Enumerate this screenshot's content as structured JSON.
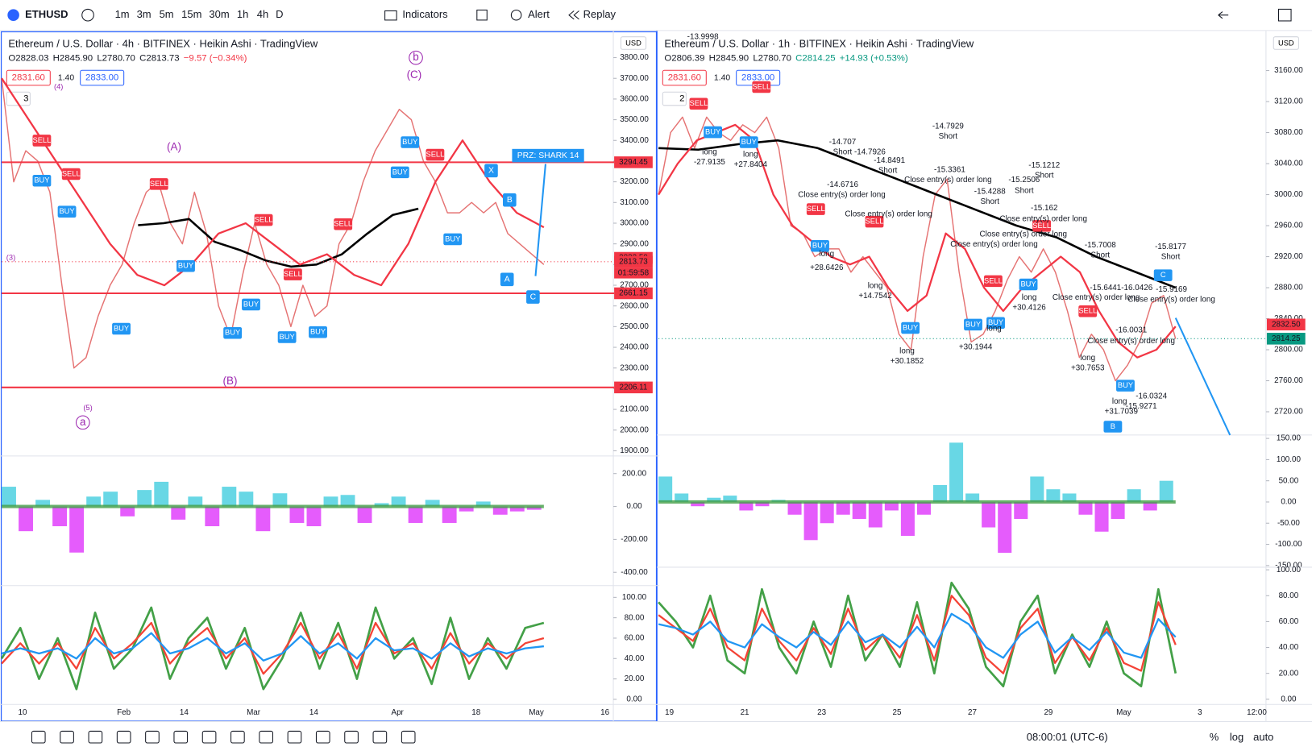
{
  "toolbar": {
    "symbol": "ETHUSD",
    "intervals": [
      "1m",
      "3m",
      "5m",
      "15m",
      "30m",
      "1h",
      "4h",
      "D"
    ],
    "indicators": "Indicators",
    "alert": "Alert",
    "replay": "Replay"
  },
  "charts": [
    {
      "title": "Ethereum / U.S. Dollar · 4h · BITFINEX · Heikin Ashi · TradingView",
      "ohlc": [
        "O2828.03",
        "H2845.90",
        "L2780.70",
        "C2813.73"
      ],
      "change": "−9.57 (−0.34%)",
      "badges": [
        "2831.60",
        "1.40",
        "2833.00"
      ],
      "indicator_count": "3",
      "currency": "USD",
      "price": {
        "ylim": [
          1875,
          3925
        ],
        "yticks": [
          {
            "value": 1900,
            "label": "1900.00"
          },
          {
            "value": 2000,
            "label": "2000.00"
          },
          {
            "value": 2100,
            "label": "2100.00"
          },
          {
            "value": 2200,
            "label": "2200.00"
          },
          {
            "value": 2300,
            "label": "2300.00"
          },
          {
            "value": 2400,
            "label": "2400.00"
          },
          {
            "value": 2500,
            "label": "2500.00"
          },
          {
            "value": 2600,
            "label": "2600.00"
          },
          {
            "value": 2700,
            "label": "2700.00"
          },
          {
            "value": 2800,
            "label": "2800.00"
          },
          {
            "value": 2900,
            "label": "2900.00"
          },
          {
            "value": 3000,
            "label": "3000.00"
          },
          {
            "value": 3100,
            "label": "3100.00"
          },
          {
            "value": 3200,
            "label": "3200.00"
          },
          {
            "value": 3300,
            "label": "3300.00"
          },
          {
            "value": 3400,
            "label": "3400.00"
          },
          {
            "value": 3500,
            "label": "3500.00"
          },
          {
            "value": 3600,
            "label": "3600.00"
          },
          {
            "value": 3700,
            "label": "3700.00"
          },
          {
            "value": 3800,
            "label": "3800.00"
          }
        ],
        "color": "#e57373",
        "values": [
          3700,
          3200,
          3350,
          3300,
          3150,
          2700,
          2300,
          2350,
          2550,
          2700,
          2800,
          3000,
          3150,
          3200,
          3000,
          2900,
          3150,
          2950,
          2600,
          2450,
          2750,
          3000,
          2800,
          2700,
          2500,
          2700,
          2550,
          2600,
          2900,
          3000,
          3200,
          3350,
          3450,
          3550,
          3500,
          3300,
          3200,
          3050,
          3050,
          3100,
          3050,
          3100,
          2950,
          2900,
          2850,
          2800
        ],
        "ma": [
          {
            "color": "#000000",
            "values": [
              2990,
              3000,
              3020,
              2910,
              2870,
              2820,
              2790,
              2800,
              2850,
              2950,
              3040,
              3070
            ]
          },
          {
            "color": "#f23645",
            "values": [
              3700,
              3500,
              3300,
              3100,
              2900,
              2750,
              2700,
              2800,
              2950,
              3000,
              2900,
              2800,
              2850,
              2750,
              2700,
              2900,
              3200,
              3400,
              3200,
              3050,
              2980
            ]
          }
        ],
        "levels": [
          3294.45,
          2661.15,
          2206.11
        ],
        "level_color": "#f23645",
        "price_labels": [
          {
            "value": 2832.5,
            "label": "2832.50"
          },
          2813.73
        ],
        "countdown": "01:59:58"
      },
      "osc": {
        "ylim": [
          -481,
          307
        ],
        "yticks": [
          {
            "value": 200,
            "label": "200.00"
          },
          {
            "value": 0,
            "label": "0.00"
          },
          {
            "value": -200,
            "label": "-200.00"
          },
          {
            "value": -400,
            "label": "-400.00"
          }
        ],
        "values": [
          120,
          -150,
          40,
          -120,
          -280,
          60,
          90,
          -60,
          100,
          150,
          -80,
          60,
          -120,
          120,
          90,
          -150,
          80,
          -100,
          -120,
          60,
          70,
          -100,
          20,
          60,
          -100,
          40,
          -100,
          -30,
          30,
          -50,
          -30,
          -20
        ]
      },
      "stoch": {
        "ylim": [
          -5,
          111.5
        ],
        "yticks": [
          {
            "value": 0,
            "label": "0.00"
          },
          {
            "value": 20,
            "label": "20.00"
          },
          {
            "value": 40,
            "label": "40.00"
          },
          {
            "value": 60,
            "label": "60.00"
          },
          {
            "value": 80,
            "label": "80.00"
          },
          {
            "value": 100,
            "label": "100.00"
          }
        ],
        "series": [
          {
            "color": "#43a047",
            "values": [
              40,
              70,
              20,
              60,
              10,
              85,
              30,
              50,
              90,
              20,
              60,
              80,
              30,
              70,
              10,
              40,
              85,
              30,
              75,
              20,
              90,
              40,
              60,
              15,
              80,
              20,
              60,
              30,
              70,
              75
            ]
          },
          {
            "color": "#f44336",
            "values": [
              35,
              55,
              35,
              55,
              30,
              70,
              40,
              55,
              75,
              35,
              55,
              70,
              40,
              60,
              25,
              45,
              75,
              40,
              65,
              30,
              75,
              45,
              55,
              30,
              65,
              35,
              55,
              40,
              55,
              60
            ]
          },
          {
            "color": "#2196f3",
            "values": [
              45,
              50,
              45,
              50,
              40,
              60,
              45,
              50,
              65,
              45,
              50,
              60,
              45,
              55,
              38,
              45,
              62,
              45,
              55,
              40,
              60,
              48,
              50,
              40,
              55,
              42,
              50,
              45,
              50,
              52
            ]
          }
        ]
      },
      "x_labels": [
        "10",
        "Feb",
        "14",
        "Mar",
        "14",
        "Apr",
        "18",
        "May",
        "16"
      ],
      "annotations": [
        "PRZ: SHARK 14",
        "(A)",
        "(B)",
        "(C)",
        "b",
        "a",
        "(5)",
        "(4)",
        "(3)",
        "X",
        "B",
        "A",
        "C"
      ],
      "signals": [
        "SELL",
        "SELL",
        "BUY",
        "BUY",
        "BUY",
        "SELL",
        "BUY",
        "SELL",
        "BUY",
        "BUY",
        "SELL",
        "BUY",
        "BUY",
        "SELL",
        "BUY",
        "BUY",
        "SELL",
        "BUY"
      ]
    },
    {
      "title": "Ethereum / U.S. Dollar · 1h · BITFINEX · Heikin Ashi · TradingView",
      "ohlc": [
        "O2806.39",
        "H2845.90",
        "L2780.70",
        "C2814.25"
      ],
      "change": "+14.93 (+0.53%)",
      "badges": [
        "2831.60",
        "1.40",
        "2833.00"
      ],
      "indicator_count": "2",
      "currency": "USD",
      "price": {
        "ylim": [
          2690,
          3210
        ],
        "yticks": [
          {
            "value": 2720,
            "label": "2720.00"
          },
          {
            "value": 2760,
            "label": "2760.00"
          },
          {
            "value": 2800,
            "label": "2800.00"
          },
          {
            "value": 2840,
            "label": "2840.00"
          },
          {
            "value": 2880,
            "label": "2880.00"
          },
          {
            "value": 2920,
            "label": "2920.00"
          },
          {
            "value": 2960,
            "label": "2960.00"
          },
          {
            "value": 3000,
            "label": "3000.00"
          },
          {
            "value": 3040,
            "label": "3040.00"
          },
          {
            "value": 3080,
            "label": "3080.00"
          },
          {
            "value": 3120,
            "label": "3120.00"
          },
          {
            "value": 3160,
            "label": "3160.00"
          }
        ],
        "color": "#e57373",
        "values": [
          3000,
          3080,
          3100,
          3060,
          3100,
          3080,
          3070,
          3090,
          3080,
          3100,
          3060,
          2960,
          2950,
          2920,
          2930,
          2930,
          2900,
          2920,
          2900,
          2880,
          2820,
          2800,
          2920,
          3000,
          3020,
          2900,
          2810,
          2820,
          2850,
          2890,
          2920,
          2900,
          2930,
          2900,
          2850,
          2790,
          2820,
          2800,
          2760,
          2780,
          2810,
          2860,
          2870,
          2814
        ],
        "ma": [
          {
            "color": "#000000",
            "values": [
              3060,
              3058,
              3065,
              3070,
              3060,
              3040,
              3020,
              3000,
              2980,
              2960,
              2945,
              2920,
              2900,
              2880
            ]
          },
          {
            "color": "#f23645",
            "values": [
              3000,
              3040,
              3070,
              3080,
              3090,
              3070,
              3000,
              2960,
              2940,
              2920,
              2910,
              2920,
              2880,
              2850,
              2870,
              2950,
              2930,
              2880,
              2850,
              2880,
              2900,
              2920,
              2900,
              2850,
              2810,
              2790,
              2800,
              2830
            ]
          }
        ],
        "levels": [],
        "level_color": "#f23645",
        "price_labels": [
          {
            "value": 2832.5,
            "label": "2832.50"
          },
          2814.25
        ]
      },
      "osc": {
        "ylim": [
          -154,
          158
        ],
        "yticks": [
          {
            "value": 150,
            "label": "150.00"
          },
          {
            "value": 100,
            "label": "100.00"
          },
          {
            "value": 50,
            "label": "50.00"
          },
          {
            "value": 0,
            "label": "0.00"
          },
          {
            "value": -50,
            "label": "-50.00"
          },
          {
            "value": -100,
            "label": "-100.00"
          },
          {
            "value": -150,
            "label": "-150.00"
          }
        ],
        "values": [
          60,
          20,
          -10,
          10,
          15,
          -20,
          -10,
          5,
          -30,
          -90,
          -50,
          -30,
          -40,
          -60,
          -20,
          -80,
          -30,
          40,
          140,
          20,
          -60,
          -120,
          -40,
          60,
          30,
          20,
          -30,
          -70,
          -40,
          30,
          -20,
          50
        ]
      },
      "stoch": {
        "ylim": [
          -4,
          102
        ],
        "yticks": [
          {
            "value": 0,
            "label": "0.00"
          },
          {
            "value": 20,
            "label": "20.00"
          },
          {
            "value": 40,
            "label": "40.00"
          },
          {
            "value": 60,
            "label": "60.00"
          },
          {
            "value": 80,
            "label": "80.00"
          },
          {
            "value": 100,
            "label": "100.00"
          }
        ],
        "series": [
          {
            "color": "#43a047",
            "values": [
              75,
              60,
              40,
              80,
              30,
              20,
              85,
              40,
              20,
              60,
              25,
              80,
              30,
              50,
              25,
              75,
              20,
              90,
              70,
              25,
              10,
              60,
              80,
              20,
              50,
              25,
              60,
              20,
              10,
              85,
              20
            ]
          },
          {
            "color": "#f44336",
            "values": [
              65,
              55,
              45,
              70,
              40,
              30,
              70,
              45,
              30,
              55,
              35,
              70,
              38,
              50,
              32,
              65,
              30,
              80,
              65,
              32,
              20,
              55,
              70,
              28,
              48,
              30,
              55,
              28,
              22,
              75,
              42
            ]
          },
          {
            "color": "#2196f3",
            "values": [
              58,
              55,
              50,
              60,
              45,
              40,
              58,
              48,
              40,
              52,
              42,
              60,
              44,
              50,
              40,
              56,
              40,
              66,
              58,
              40,
              32,
              50,
              60,
              36,
              48,
              38,
              52,
              36,
              32,
              62,
              48
            ]
          }
        ]
      },
      "x_labels": [
        "19",
        "21",
        "23",
        "25",
        "27",
        "29",
        "May",
        "3",
        "12:00"
      ],
      "annotations": [
        "-13.9998",
        "-14.7929",
        "Short",
        "-14.707",
        "Short -14.7926",
        "-14.8491",
        "Short",
        "-14.6716",
        "-15.3361",
        "Close entry(s) order long",
        "-15.1212",
        "Short",
        "-15.2506",
        "Short",
        "-15.4288",
        "Short",
        "-15.162",
        "Close entry(s) order long",
        "Close entry(s) order long",
        "Close entry(s) order long",
        "Close entry(s) order long",
        "Close entry(s) order long",
        "-15.7008",
        "Short",
        "-15.8177",
        "Short",
        "-15.6441-16.0426",
        "-15.9169",
        "Close entry(s) order long",
        "Close entry(s) order long",
        "-16.0031",
        "Close entry(s) order long",
        "long",
        "-27.9135",
        "long",
        "+27.8404",
        "long",
        "+28.6426",
        "long",
        "+30.1852",
        "long",
        "+30.4126",
        "long",
        "+30.7653",
        "long",
        "+30.1944",
        "long",
        "+31.7039",
        "-15.9271",
        "-16.0324",
        "long",
        "+14.7542"
      ],
      "signals": [
        "SELL",
        "BUY",
        "BUY",
        "SELL",
        "SELL",
        "BUY",
        "SELL",
        "BUY",
        "BUY",
        "SELL",
        "BUY",
        "SELL",
        "BUY",
        "SELL",
        "BUY",
        "C",
        "B"
      ]
    }
  ],
  "status_bar": {
    "time": "08:00:01 (UTC-6)",
    "percent": "%",
    "log": "log",
    "auto": "auto"
  }
}
